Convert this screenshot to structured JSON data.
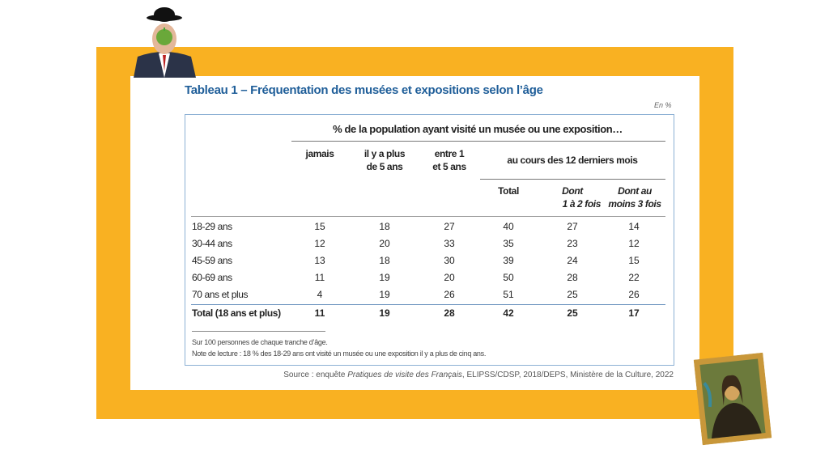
{
  "title": "Tableau 1 – Fréquentation des musées et expositions selon l’âge",
  "unit": "En %",
  "header": {
    "span": "% de la population ayant visité un musée ou une exposition…",
    "jamais": "jamais",
    "plus5_1": "il y a plus",
    "plus5_2": "de 5 ans",
    "entre_1": "entre 1",
    "entre_2": "et 5 ans",
    "recent": "au cours des 12 derniers mois",
    "total": "Total",
    "dont12_1": "Dont",
    "dont12_2": "1 à 2 fois",
    "dont3_1": "Dont au",
    "dont3_2": "moins 3 fois"
  },
  "rows": [
    {
      "label": "18-29 ans",
      "values": [
        "15",
        "18",
        "27",
        "40",
        "27",
        "14"
      ]
    },
    {
      "label": "30-44 ans",
      "values": [
        "12",
        "20",
        "33",
        "35",
        "23",
        "12"
      ]
    },
    {
      "label": "45-59 ans",
      "values": [
        "13",
        "18",
        "30",
        "39",
        "24",
        "15"
      ]
    },
    {
      "label": "60-69 ans",
      "values": [
        "11",
        "19",
        "20",
        "50",
        "28",
        "22"
      ]
    },
    {
      "label": "70 ans et plus",
      "values": [
        "4",
        "19",
        "26",
        "51",
        "25",
        "26"
      ]
    }
  ],
  "total_row": {
    "label": "Total (18 ans et plus)",
    "values": [
      "11",
      "19",
      "28",
      "42",
      "25",
      "17"
    ]
  },
  "notes": [
    "Sur 100 personnes de chaque tranche d’âge.",
    "Note de lecture : 18 % des 18-29 ans ont visité un musée ou une exposition il y a plus de cinq ans."
  ],
  "source": {
    "prefix": "Source : enquête ",
    "italic": "Pratiques de visite des Français",
    "suffix": ", ELIPSS/CDSP, 2018/DEPS, Ministère de la Culture, 2022"
  },
  "colors": {
    "frame": "#F9B122",
    "title": "#1f5e99",
    "border": "#8cb0d4"
  }
}
